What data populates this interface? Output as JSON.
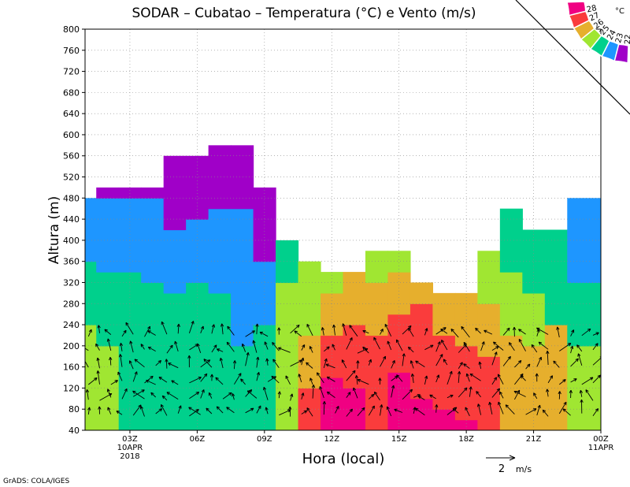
{
  "chart_data": {
    "type": "heatmap",
    "title": "SODAR – Cubatao – Temperatura (°C) e Vento (m/s)",
    "xlabel": "Hora (local)",
    "ylabel": "Altura (m)",
    "xlim": [
      0,
      23
    ],
    "ylim": [
      40,
      800
    ],
    "y_ticks": [
      40,
      80,
      120,
      160,
      200,
      240,
      280,
      320,
      360,
      400,
      440,
      480,
      520,
      560,
      600,
      640,
      680,
      720,
      760,
      800
    ],
    "x_ticks": [
      {
        "x": 2,
        "label": "03Z",
        "sub": [
          "10APR",
          "2018"
        ]
      },
      {
        "x": 5,
        "label": "06Z",
        "sub": []
      },
      {
        "x": 8,
        "label": "09Z",
        "sub": []
      },
      {
        "x": 11,
        "label": "12Z",
        "sub": []
      },
      {
        "x": 14,
        "label": "15Z",
        "sub": []
      },
      {
        "x": 17,
        "label": "18Z",
        "sub": []
      },
      {
        "x": 20,
        "label": "21Z",
        "sub": []
      },
      {
        "x": 23,
        "label": "00Z",
        "sub": [
          "11APR"
        ]
      }
    ],
    "grid": true,
    "colorbar": {
      "unit": "°C",
      "placement": "top-right",
      "levels": [
        "22",
        "23",
        "24",
        "25",
        "26",
        "27",
        "28"
      ],
      "colors": [
        "#a000c8",
        "#1e96ff",
        "#00d08c",
        "#a0e632",
        "#e6af2d",
        "#fa3c3c",
        "#f00082"
      ]
    },
    "data_top_height": [
      480,
      500,
      500,
      500,
      560,
      560,
      580,
      580,
      500,
      400,
      360,
      340,
      340,
      380,
      380,
      320,
      300,
      300,
      380,
      460,
      420,
      420,
      480,
      480
    ],
    "temperature_profiles": [
      {
        "x": 0,
        "h": [
          [
            100,
            25
          ],
          [
            240,
            25
          ],
          [
            360,
            24
          ],
          [
            480,
            23
          ]
        ]
      },
      {
        "x": 1,
        "h": [
          [
            80,
            25
          ],
          [
            200,
            25
          ],
          [
            340,
            24
          ],
          [
            480,
            23
          ],
          [
            500,
            22
          ]
        ]
      },
      {
        "x": 2,
        "h": [
          [
            80,
            24
          ],
          [
            200,
            24
          ],
          [
            340,
            24
          ],
          [
            480,
            23
          ],
          [
            500,
            22
          ]
        ]
      },
      {
        "x": 3,
        "h": [
          [
            200,
            24
          ],
          [
            320,
            24
          ],
          [
            480,
            23
          ],
          [
            500,
            22
          ]
        ]
      },
      {
        "x": 4,
        "h": [
          [
            200,
            24
          ],
          [
            300,
            24
          ],
          [
            420,
            23
          ],
          [
            560,
            22
          ]
        ]
      },
      {
        "x": 5,
        "h": [
          [
            200,
            24
          ],
          [
            320,
            24
          ],
          [
            440,
            23
          ],
          [
            560,
            22
          ]
        ]
      },
      {
        "x": 6,
        "h": [
          [
            200,
            24
          ],
          [
            300,
            24
          ],
          [
            460,
            23
          ],
          [
            580,
            22
          ]
        ]
      },
      {
        "x": 7,
        "h": [
          [
            160,
            24
          ],
          [
            200,
            24
          ],
          [
            460,
            23
          ],
          [
            580,
            22
          ]
        ]
      },
      {
        "x": 8,
        "h": [
          [
            120,
            24
          ],
          [
            240,
            24
          ],
          [
            360,
            23
          ],
          [
            500,
            22
          ]
        ]
      },
      {
        "x": 9,
        "h": [
          [
            100,
            25
          ],
          [
            200,
            25
          ],
          [
            320,
            25
          ],
          [
            400,
            24
          ]
        ]
      },
      {
        "x": 10,
        "h": [
          [
            120,
            27
          ],
          [
            220,
            26
          ],
          [
            300,
            25
          ],
          [
            360,
            25
          ]
        ]
      },
      {
        "x": 11,
        "h": [
          [
            140,
            28
          ],
          [
            220,
            27
          ],
          [
            300,
            26
          ],
          [
            340,
            25
          ]
        ]
      },
      {
        "x": 12,
        "h": [
          [
            120,
            28
          ],
          [
            240,
            27
          ],
          [
            320,
            26
          ],
          [
            340,
            26
          ]
        ]
      },
      {
        "x": 13,
        "h": [
          [
            80,
            27
          ],
          [
            220,
            27
          ],
          [
            320,
            26
          ],
          [
            380,
            25
          ]
        ]
      },
      {
        "x": 14,
        "h": [
          [
            150,
            28
          ],
          [
            260,
            27
          ],
          [
            340,
            26
          ],
          [
            380,
            25
          ]
        ]
      },
      {
        "x": 15,
        "h": [
          [
            100,
            28
          ],
          [
            280,
            27
          ],
          [
            320,
            26
          ]
        ]
      },
      {
        "x": 16,
        "h": [
          [
            80,
            28
          ],
          [
            220,
            27
          ],
          [
            300,
            26
          ]
        ]
      },
      {
        "x": 17,
        "h": [
          [
            60,
            28
          ],
          [
            200,
            27
          ],
          [
            300,
            26
          ]
        ]
      },
      {
        "x": 18,
        "h": [
          [
            180,
            27
          ],
          [
            280,
            26
          ],
          [
            380,
            25
          ]
        ]
      },
      {
        "x": 19,
        "h": [
          [
            120,
            26
          ],
          [
            220,
            26
          ],
          [
            340,
            25
          ],
          [
            460,
            24
          ]
        ]
      },
      {
        "x": 20,
        "h": [
          [
            100,
            26
          ],
          [
            200,
            26
          ],
          [
            300,
            25
          ],
          [
            420,
            24
          ]
        ]
      },
      {
        "x": 21,
        "h": [
          [
            120,
            26
          ],
          [
            240,
            26
          ],
          [
            360,
            24
          ],
          [
            420,
            24
          ]
        ]
      },
      {
        "x": 22,
        "h": [
          [
            80,
            25
          ],
          [
            200,
            25
          ],
          [
            320,
            24
          ],
          [
            480,
            23
          ]
        ]
      },
      {
        "x": 23,
        "h": [
          [
            80,
            25
          ],
          [
            200,
            25
          ],
          [
            320,
            24
          ],
          [
            480,
            23
          ]
        ]
      }
    ],
    "wind_scale": {
      "value": 2,
      "label": "2",
      "unit": "m/s"
    }
  },
  "footer": {
    "credit": "GrADS: COLA/IGES"
  }
}
